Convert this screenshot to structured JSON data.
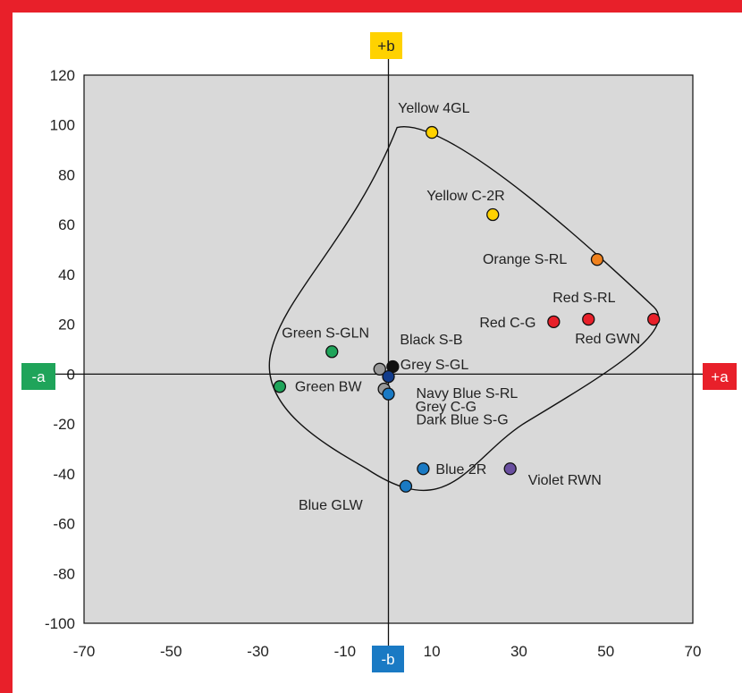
{
  "colors": {
    "frame": "#e8202a",
    "plot_bg": "#d9d9d9",
    "yellow": "#ffd200",
    "orange": "#f0821e",
    "red": "#e8202a",
    "green": "#1fa45a",
    "blue": "#1a7ac4",
    "navy": "#123c8c",
    "grey": "#9a9a9a",
    "black": "#111111",
    "violet": "#6a4fa0"
  },
  "chart_data": {
    "type": "scatter",
    "title": "",
    "xlabel": "",
    "ylabel": "",
    "xlim": [
      -70,
      70
    ],
    "ylim": [
      -100,
      120
    ],
    "xticks": [
      "-70",
      "-50",
      "-30",
      "-10",
      "10",
      "30",
      "50",
      "70"
    ],
    "yticks": [
      "120",
      "100",
      "80",
      "60",
      "40",
      "20",
      "0",
      "-20",
      "-40",
      "-60",
      "-80",
      "-100"
    ],
    "grid": false,
    "axis_labels": {
      "pos_b": "+b",
      "neg_b": "-b",
      "pos_a": "+a",
      "neg_a": "-a"
    },
    "points": [
      {
        "label": "Yellow 4GL",
        "x": 10,
        "y": 97,
        "color": "yellow"
      },
      {
        "label": "Yellow C-2R",
        "x": 24,
        "y": 64,
        "color": "yellow"
      },
      {
        "label": "Orange S-RL",
        "x": 48,
        "y": 46,
        "color": "orange"
      },
      {
        "label": "Red S-RL",
        "x": 46,
        "y": 22,
        "color": "red"
      },
      {
        "label": "Red C-G",
        "x": 38,
        "y": 21,
        "color": "red"
      },
      {
        "label": "Red GWN",
        "x": 61,
        "y": 22,
        "color": "red"
      },
      {
        "label": "Green S-GLN",
        "x": -13,
        "y": 9,
        "color": "green"
      },
      {
        "label": "Green BW",
        "x": -25,
        "y": -5,
        "color": "green"
      },
      {
        "label": "Black S-B",
        "x": 1,
        "y": 3,
        "color": "black"
      },
      {
        "label": "Grey S-GL",
        "x": -2,
        "y": 2,
        "color": "grey"
      },
      {
        "label": "Navy Blue S-RL",
        "x": 0,
        "y": -1,
        "color": "navy"
      },
      {
        "label": "Grey C-G",
        "x": -1,
        "y": -6,
        "color": "grey"
      },
      {
        "label": "Dark Blue S-G",
        "x": 0,
        "y": -8,
        "color": "blue"
      },
      {
        "label": "Blue 2R",
        "x": 8,
        "y": -38,
        "color": "blue"
      },
      {
        "label": "Blue GLW",
        "x": 4,
        "y": -45,
        "color": "blue"
      },
      {
        "label": "Violet RWN",
        "x": 28,
        "y": -38,
        "color": "violet"
      }
    ]
  }
}
